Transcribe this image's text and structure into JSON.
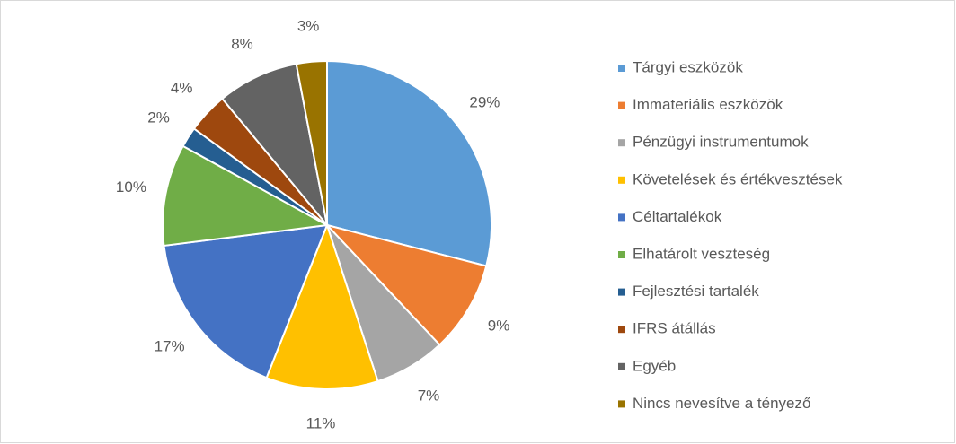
{
  "chart_data": {
    "type": "pie",
    "categories": [
      "Tárgyi eszközök",
      "Immateriális eszközök",
      "Pénzügyi instrumentumok",
      "Követelések és értékvesztések",
      "Céltartalékok",
      "Elhatárolt veszteség",
      "Fejlesztési tartalék",
      "IFRS átállás",
      "Egyéb",
      "Nincs nevesítve a tényező"
    ],
    "values": [
      29,
      9,
      7,
      11,
      17,
      10,
      2,
      4,
      8,
      3
    ],
    "value_labels": [
      "29%",
      "9%",
      "7%",
      "11%",
      "17%",
      "10%",
      "2%",
      "4%",
      "8%",
      "3%"
    ],
    "colors": [
      "#5b9bd5",
      "#ed7d31",
      "#a5a5a5",
      "#ffc000",
      "#4472c4",
      "#70ad47",
      "#255e91",
      "#9e480e",
      "#636363",
      "#997300"
    ],
    "legend": "right"
  }
}
